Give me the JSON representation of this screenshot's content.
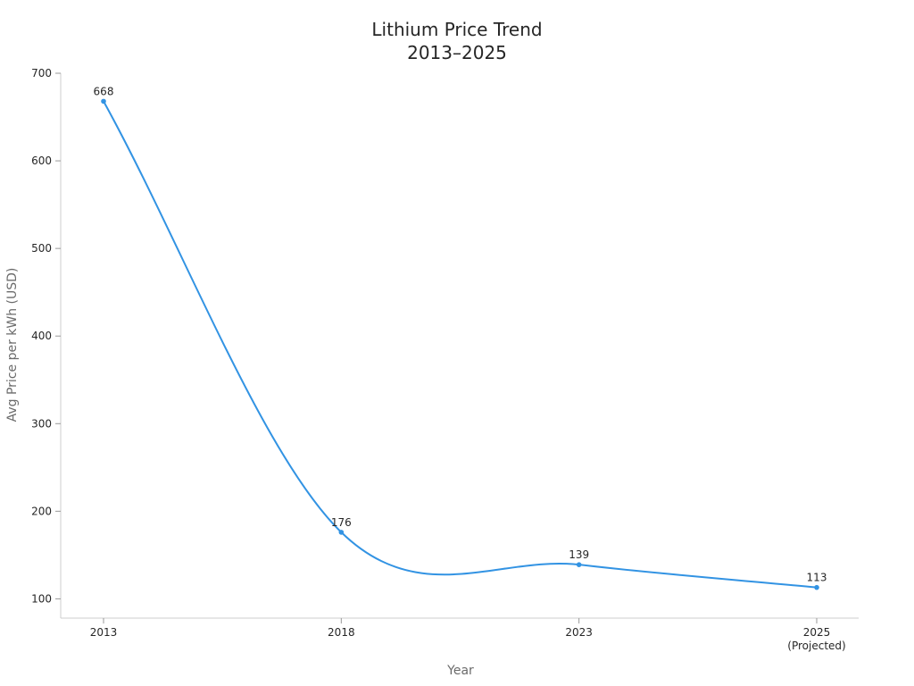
{
  "chart_data": {
    "type": "line",
    "title": [
      "Lithium Price Trend",
      "2013–2025"
    ],
    "xlabel": "Year",
    "ylabel": "Avg Price per kWh (USD)",
    "categories": [
      "2013",
      "2018",
      "2023",
      "2025"
    ],
    "category_sublabels": [
      "",
      "",
      "",
      "(Projected)"
    ],
    "series": [
      {
        "values": [
          668,
          176,
          139,
          113
        ],
        "data_labels": [
          "668",
          "176",
          "139",
          "113"
        ]
      }
    ],
    "yticks": [
      100,
      200,
      300,
      400,
      500,
      600,
      700
    ],
    "ytick_labels": [
      "100",
      "200",
      "300",
      "400",
      "500",
      "600",
      "700"
    ],
    "ylim": [
      78,
      700
    ],
    "grid": false,
    "line_color": "#3293e3",
    "smooth": true
  }
}
